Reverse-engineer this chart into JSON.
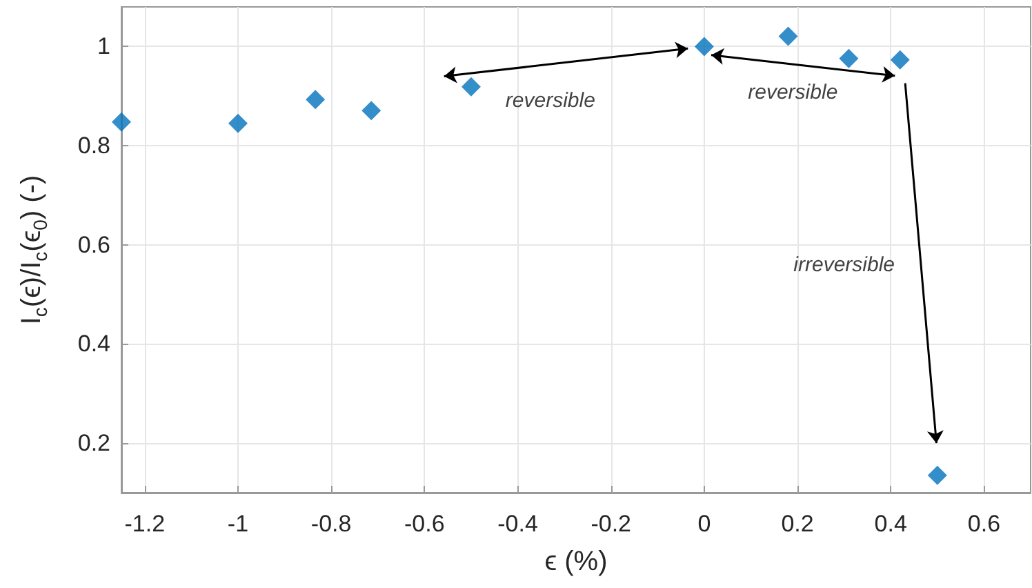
{
  "chart_data": {
    "type": "scatter",
    "xlabel": "ϵ (%)",
    "ylabel": "I$_{c}$(ϵ)/I$_{c}$(ϵ$_{0}$) (-)",
    "x": [
      -1.25,
      -1,
      -0.834,
      -0.714,
      -0.5,
      0,
      0.18,
      0.31,
      0.42,
      0.5
    ],
    "series": [
      {
        "color": "#0072bd",
        "values": [
          0.848,
          0.845,
          0.893,
          0.871,
          0.919,
          1.0,
          1.021,
          0.976,
          0.973,
          0.135
        ]
      }
    ],
    "xlim": [
      -1.25,
      0.7
    ],
    "xticks": [
      -1.2,
      -1,
      -0.8,
      -0.6,
      -0.4,
      -0.2,
      0,
      0.2,
      0.4,
      0.6
    ],
    "ylim": [
      0.1,
      1.08
    ],
    "yticks": [
      0.2,
      0.4,
      0.6,
      0.8,
      1
    ],
    "grid": true,
    "marker": "diamond",
    "annotations": [
      "reversible",
      "reversible",
      "irreversible"
    ]
  }
}
